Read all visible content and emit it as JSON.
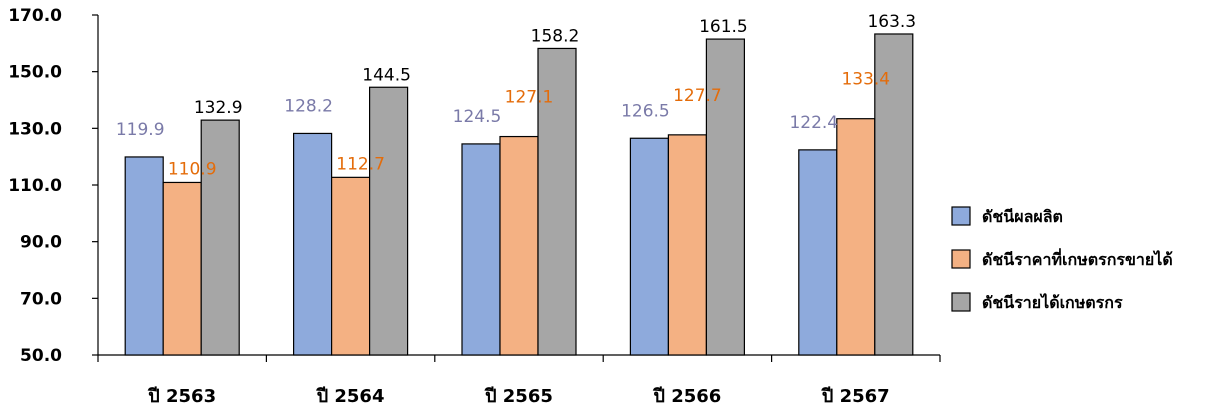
{
  "chart_data": {
    "type": "bar",
    "title": "",
    "xlabel": "",
    "ylabel": "",
    "categories": [
      "ปี 2563",
      "ปี 2564",
      "ปี 2565",
      "ปี 2566",
      "ปี 2567"
    ],
    "series": [
      {
        "name": "ดัชนีผลผลิต",
        "values": [
          119.9,
          128.2,
          124.5,
          126.5,
          122.4
        ],
        "color": "#8eaadc",
        "label_color": "#7a7aa8"
      },
      {
        "name": "ดัชนีราคาที่เกษตรกรขายได้",
        "values": [
          110.9,
          112.7,
          127.1,
          127.7,
          133.4
        ],
        "color": "#f4b183",
        "label_color": "#e46c0a"
      },
      {
        "name": "ดัชนีรายได้เกษตรกร",
        "values": [
          132.9,
          144.5,
          158.2,
          161.5,
          163.3
        ],
        "color": "#a6a6a6",
        "label_color": "#000000"
      }
    ],
    "data_labels": [
      [
        "119.9",
        "128.2",
        "124.5",
        "126.5",
        "122.4"
      ],
      [
        "110.9",
        "112.7",
        "127.1",
        "127.7",
        "133.4"
      ],
      [
        "132.9",
        "144.5",
        "158.2",
        "161.5",
        "163.3"
      ]
    ],
    "ylim": [
      50,
      170
    ],
    "yticks": [
      50,
      70,
      90,
      110,
      130,
      150,
      170
    ],
    "ytick_labels": [
      "50.0",
      "70.0",
      "90.0",
      "110.0",
      "130.0",
      "150.0",
      "170.0"
    ],
    "grid": false,
    "legend_position": "right"
  }
}
